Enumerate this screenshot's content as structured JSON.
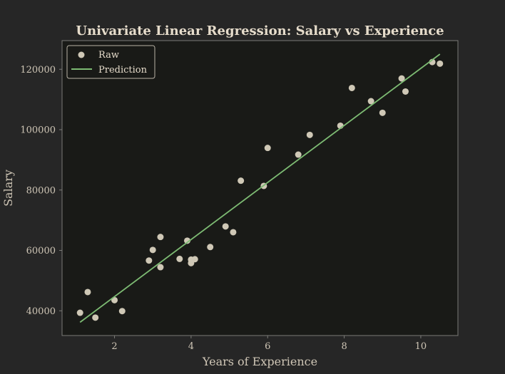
{
  "colors": {
    "figure_bg": "#262626",
    "plot_bg": "#191a17",
    "spine": "#7b7b77",
    "text": "#e6dccb",
    "tick_text": "#cfc6b6",
    "raw_point": "#cfc8b6",
    "prediction_line": "#7dbb73",
    "legend_bg": "#191a17",
    "legend_border": "#b9b3a6"
  },
  "chart_data": {
    "type": "scatter",
    "title": "Univariate Linear Regression: Salary vs Experience",
    "xlabel": "Years of Experience",
    "ylabel": "Salary",
    "xlim": [
      0.63,
      10.97
    ],
    "ylim": [
      31800,
      129500
    ],
    "xticks": [
      2,
      4,
      6,
      8,
      10
    ],
    "yticks": [
      40000,
      60000,
      80000,
      100000,
      120000
    ],
    "grid": false,
    "legend_position": "top-left",
    "series": [
      {
        "name": "Raw",
        "kind": "scatter",
        "points": [
          [
            1.1,
            39343
          ],
          [
            1.3,
            46205
          ],
          [
            1.5,
            37731
          ],
          [
            2.0,
            43525
          ],
          [
            2.2,
            39891
          ],
          [
            2.9,
            56642
          ],
          [
            3.0,
            60150
          ],
          [
            3.2,
            54445
          ],
          [
            3.2,
            64445
          ],
          [
            3.7,
            57189
          ],
          [
            3.9,
            63218
          ],
          [
            4.0,
            55794
          ],
          [
            4.0,
            56957
          ],
          [
            4.1,
            57081
          ],
          [
            4.5,
            61111
          ],
          [
            4.9,
            67938
          ],
          [
            5.1,
            66029
          ],
          [
            5.3,
            83088
          ],
          [
            5.9,
            81363
          ],
          [
            6.0,
            93940
          ],
          [
            6.8,
            91738
          ],
          [
            7.1,
            98273
          ],
          [
            7.9,
            101302
          ],
          [
            8.2,
            113812
          ],
          [
            8.7,
            109431
          ],
          [
            9.0,
            105582
          ],
          [
            9.5,
            116969
          ],
          [
            9.6,
            112635
          ],
          [
            10.3,
            122391
          ],
          [
            10.5,
            121872
          ]
        ]
      },
      {
        "name": "Prediction",
        "kind": "line",
        "points": [
          [
            1.1,
            36188
          ],
          [
            10.5,
            125024
          ]
        ]
      }
    ]
  }
}
